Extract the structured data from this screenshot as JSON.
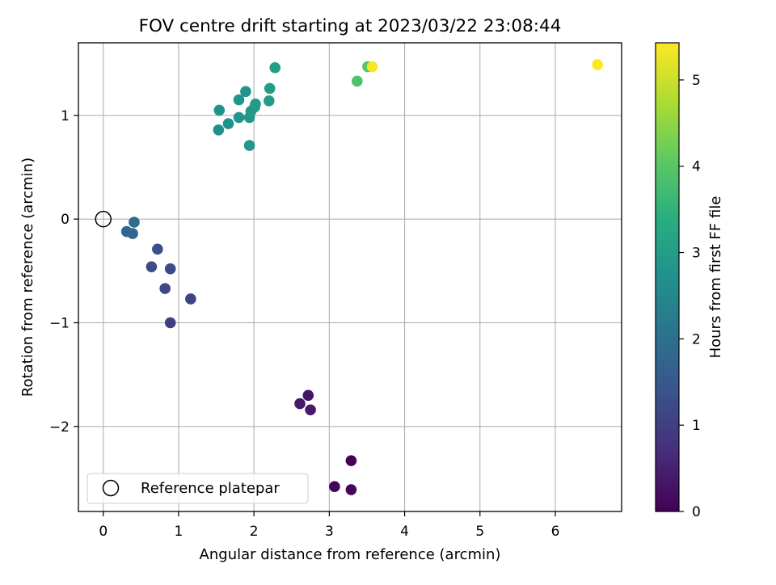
{
  "chart_data": {
    "type": "scatter",
    "title": "FOV centre drift starting at 2023/03/22 23:08:44",
    "xlabel": "Angular distance from reference (arcmin)",
    "ylabel": "Rotation from reference (arcmin)",
    "xlim": [
      -0.33,
      6.88
    ],
    "ylim": [
      -2.82,
      1.7
    ],
    "xticks": [
      0,
      1,
      2,
      3,
      4,
      5,
      6
    ],
    "yticks": [
      -2,
      -1,
      0,
      1
    ],
    "xtick_labels": [
      "0",
      "1",
      "2",
      "3",
      "4",
      "5",
      "6"
    ],
    "ytick_labels": [
      "−2",
      "−1",
      "0",
      "1"
    ],
    "grid": true,
    "colormap": "viridis",
    "colorbar": {
      "label": "Hours from first FF file",
      "range": [
        0,
        5.43
      ],
      "ticks": [
        0,
        1,
        2,
        3,
        4,
        5
      ],
      "tick_labels": [
        "0",
        "1",
        "2",
        "3",
        "4",
        "5"
      ]
    },
    "reference": {
      "x": 0,
      "y": 0,
      "label": "Reference platepar"
    },
    "legend": {
      "position": "lower-left",
      "entries": [
        "Reference platepar"
      ]
    },
    "points": [
      {
        "x": 3.29,
        "y": -2.33,
        "hours": 0.0
      },
      {
        "x": 3.07,
        "y": -2.58,
        "hours": 0.05
      },
      {
        "x": 3.29,
        "y": -2.61,
        "hours": 0.1
      },
      {
        "x": 2.72,
        "y": -1.7,
        "hours": 0.3
      },
      {
        "x": 2.61,
        "y": -1.78,
        "hours": 0.35
      },
      {
        "x": 2.75,
        "y": -1.84,
        "hours": 0.4
      },
      {
        "x": 0.89,
        "y": -1.0,
        "hours": 1.0
      },
      {
        "x": 1.16,
        "y": -0.77,
        "hours": 1.1
      },
      {
        "x": 0.82,
        "y": -0.67,
        "hours": 1.15
      },
      {
        "x": 0.89,
        "y": -0.48,
        "hours": 1.2
      },
      {
        "x": 0.64,
        "y": -0.46,
        "hours": 1.25
      },
      {
        "x": 0.72,
        "y": -0.29,
        "hours": 1.3
      },
      {
        "x": 0.31,
        "y": -0.12,
        "hours": 1.75
      },
      {
        "x": 0.39,
        "y": -0.14,
        "hours": 1.8
      },
      {
        "x": 0.41,
        "y": -0.03,
        "hours": 1.9
      },
      {
        "x": 1.53,
        "y": 0.86,
        "hours": 2.7
      },
      {
        "x": 1.54,
        "y": 1.05,
        "hours": 2.72
      },
      {
        "x": 1.66,
        "y": 0.92,
        "hours": 2.75
      },
      {
        "x": 1.8,
        "y": 0.98,
        "hours": 2.78
      },
      {
        "x": 1.8,
        "y": 1.15,
        "hours": 2.8
      },
      {
        "x": 1.89,
        "y": 1.23,
        "hours": 2.82
      },
      {
        "x": 1.94,
        "y": 0.71,
        "hours": 2.85
      },
      {
        "x": 1.94,
        "y": 0.98,
        "hours": 2.87
      },
      {
        "x": 1.96,
        "y": 1.04,
        "hours": 2.9
      },
      {
        "x": 2.01,
        "y": 1.08,
        "hours": 2.92
      },
      {
        "x": 2.02,
        "y": 1.11,
        "hours": 2.94
      },
      {
        "x": 2.2,
        "y": 1.14,
        "hours": 2.96
      },
      {
        "x": 2.21,
        "y": 1.26,
        "hours": 2.98
      },
      {
        "x": 2.28,
        "y": 1.46,
        "hours": 3.05
      },
      {
        "x": 3.37,
        "y": 1.33,
        "hours": 3.9
      },
      {
        "x": 3.51,
        "y": 1.47,
        "hours": 4.0
      },
      {
        "x": 3.57,
        "y": 1.47,
        "hours": 5.38
      },
      {
        "x": 6.56,
        "y": 1.49,
        "hours": 5.43
      }
    ]
  }
}
